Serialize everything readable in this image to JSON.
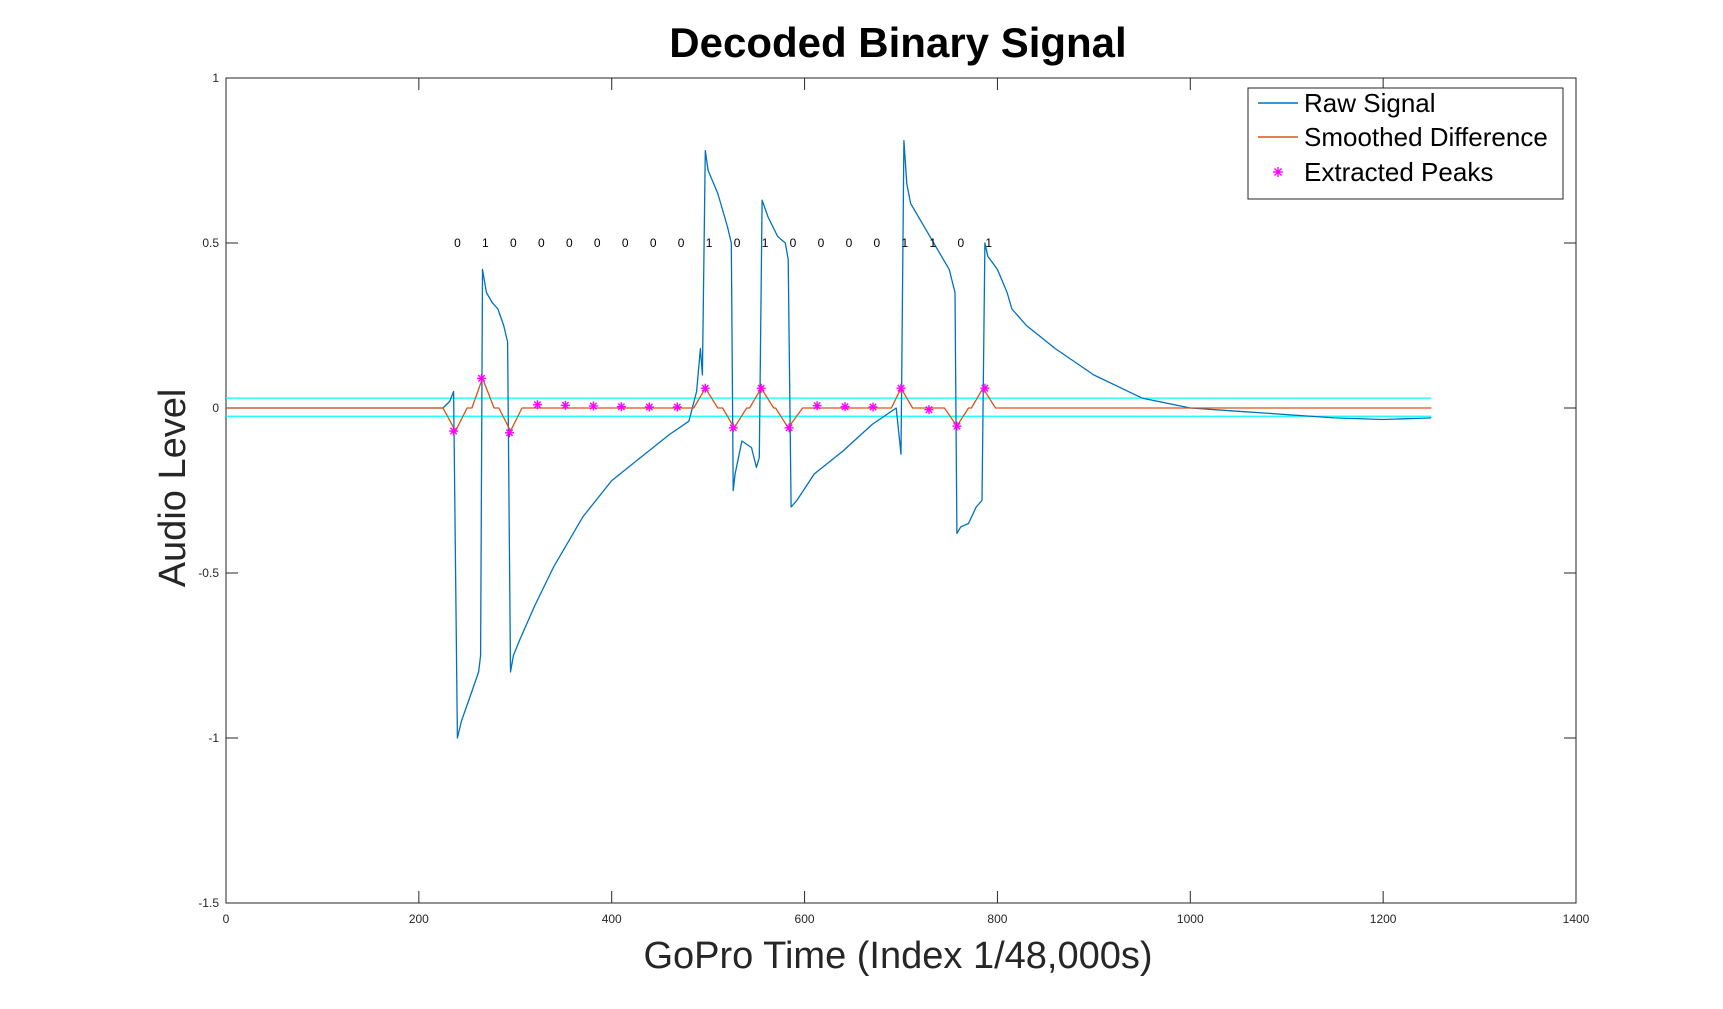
{
  "chart_data": {
    "type": "line",
    "title": "Decoded Binary Signal",
    "xlabel": "GoPro Time (Index 1/48,000s)",
    "ylabel": "Audio Level",
    "xlim": [
      0,
      1400
    ],
    "ylim": [
      -1.5,
      1
    ],
    "x_ticks": [
      0,
      200,
      400,
      600,
      800,
      1000,
      1200,
      1400
    ],
    "x_tick_labels": [
      "0",
      "200",
      "400",
      "600",
      "800",
      "1000",
      "1200",
      "1400"
    ],
    "y_ticks": [
      -1.5,
      -1,
      -0.5,
      0,
      0.5,
      1
    ],
    "y_tick_labels": [
      "-1.5",
      "-1",
      "-0.5",
      "0",
      "0.5",
      "1"
    ],
    "grid": false,
    "legend_position": "top-right",
    "colors": {
      "raw": "#0072BD",
      "smoothed": "#D95319",
      "peaks": "#FF00FF",
      "threshold": "#00FFFF"
    },
    "series": [
      {
        "name": "Raw Signal",
        "kind": "line",
        "x": [
          0,
          100,
          200,
          225,
          232,
          236,
          240,
          244,
          250,
          256,
          262,
          264,
          266,
          270,
          276,
          282,
          288,
          292,
          295,
          298,
          305,
          320,
          340,
          370,
          400,
          430,
          460,
          480,
          488,
          492,
          494,
          497,
          500,
          510,
          520,
          524,
          526,
          528,
          535,
          545,
          550,
          553,
          556,
          562,
          572,
          580,
          583,
          586,
          592,
          610,
          640,
          670,
          695,
          700,
          703,
          706,
          710,
          730,
          750,
          756,
          758,
          762,
          770,
          778,
          784,
          787,
          790,
          800,
          810,
          815,
          830,
          860,
          900,
          950,
          1000,
          1050,
          1100,
          1150,
          1200,
          1250
        ],
        "y": [
          0.0,
          0.0,
          0.0,
          0.0,
          0.02,
          0.05,
          -1.0,
          -0.95,
          -0.9,
          -0.85,
          -0.8,
          -0.75,
          0.42,
          0.35,
          0.32,
          0.3,
          0.25,
          0.2,
          -0.8,
          -0.75,
          -0.7,
          -0.6,
          -0.48,
          -0.33,
          -0.22,
          -0.15,
          -0.08,
          -0.04,
          0.05,
          0.18,
          0.1,
          0.78,
          0.72,
          0.65,
          0.55,
          0.5,
          -0.25,
          -0.2,
          -0.1,
          -0.12,
          -0.18,
          -0.15,
          0.63,
          0.58,
          0.52,
          0.5,
          0.45,
          -0.3,
          -0.28,
          -0.2,
          -0.13,
          -0.05,
          0.0,
          -0.14,
          0.81,
          0.68,
          0.62,
          0.52,
          0.42,
          0.35,
          -0.38,
          -0.36,
          -0.35,
          -0.3,
          -0.28,
          0.5,
          0.46,
          0.42,
          0.35,
          0.3,
          0.25,
          0.18,
          0.1,
          0.03,
          0.0,
          -0.01,
          -0.02,
          -0.03,
          -0.035,
          -0.03
        ]
      },
      {
        "name": "Smoothed Difference",
        "kind": "line",
        "x": [
          0,
          225,
          238,
          250,
          255,
          266,
          278,
          283,
          295,
          307,
          320,
          470,
          485,
          497,
          510,
          515,
          527,
          540,
          543,
          555,
          568,
          570,
          583,
          598,
          690,
          700,
          712,
          745,
          758,
          770,
          773,
          785,
          798,
          1250
        ],
        "y": [
          0.0,
          0.0,
          -0.07,
          0.0,
          0.0,
          0.09,
          0.0,
          0.0,
          -0.07,
          0.0,
          0.0,
          0.0,
          0.0,
          0.06,
          0.0,
          0.0,
          -0.06,
          0.0,
          0.0,
          0.06,
          0.0,
          0.0,
          -0.06,
          0.0,
          0.0,
          0.06,
          0.0,
          0.0,
          -0.055,
          0.0,
          0.0,
          0.06,
          0.0,
          0.0
        ]
      },
      {
        "name": "Extracted Peaks",
        "kind": "scatter",
        "x": [
          236,
          265,
          294,
          323,
          352,
          381,
          410,
          439,
          468,
          497,
          526,
          555,
          584,
          613,
          642,
          671,
          700,
          729,
          758,
          787
        ],
        "y": [
          -0.07,
          0.09,
          -0.075,
          0.01,
          0.008,
          0.006,
          0.004,
          0.003,
          0.003,
          0.06,
          -0.06,
          0.06,
          -0.06,
          0.007,
          0.004,
          0.003,
          0.06,
          -0.005,
          -0.055,
          0.06
        ]
      }
    ],
    "thresholds": {
      "x_range": [
        0,
        1250
      ],
      "upper": 0.03,
      "lower": -0.025
    },
    "bit_annotations": {
      "y": 0.5,
      "x": [
        240,
        269,
        298,
        327,
        356,
        385,
        414,
        443,
        472,
        501,
        530,
        559,
        588,
        617,
        646,
        675,
        704,
        733,
        762,
        791
      ],
      "labels": [
        "0",
        "1",
        "0",
        "0",
        "0",
        "0",
        "0",
        "0",
        "0",
        "1",
        "0",
        "1",
        "0",
        "0",
        "0",
        "0",
        "1",
        "1",
        "0",
        "1"
      ]
    }
  }
}
